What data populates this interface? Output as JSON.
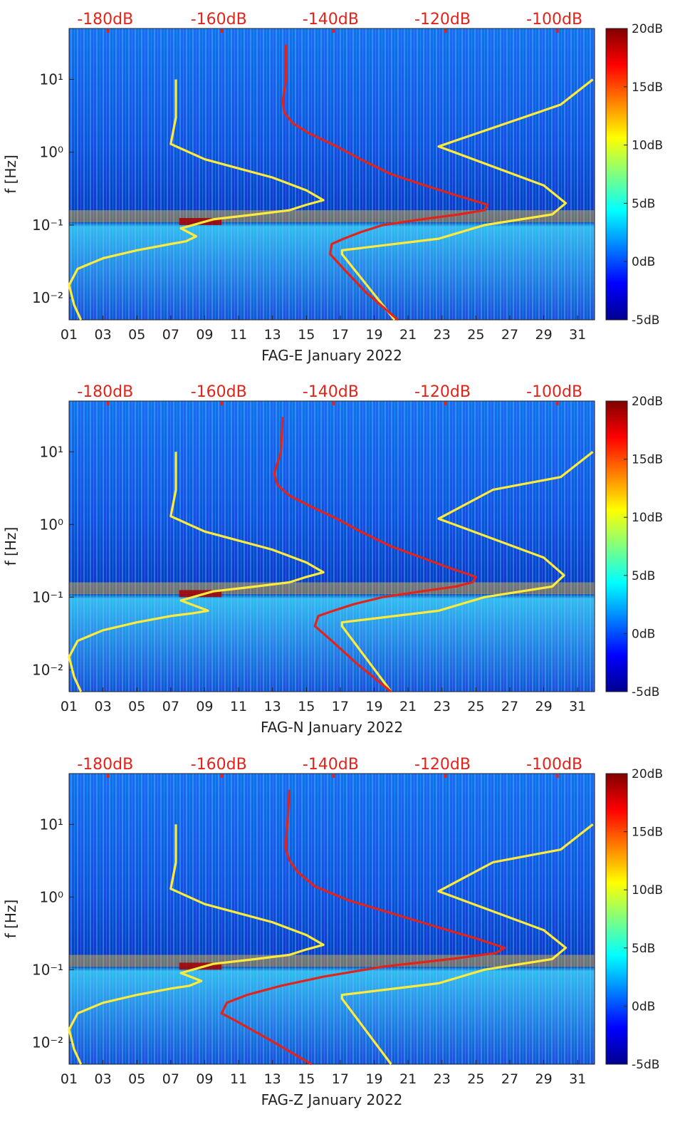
{
  "chart_data": [
    {
      "type": "heatmap",
      "title": "",
      "xlabel": "FAG-E January 2022",
      "ylabel": "f [Hz]",
      "xtick_labels": [
        "01",
        "03",
        "05",
        "07",
        "09",
        "11",
        "13",
        "15",
        "17",
        "19",
        "21",
        "23",
        "25",
        "27",
        "29",
        "31"
      ],
      "xlim_days": [
        1,
        32
      ],
      "ytick_labels": [
        "10⁻²",
        "10⁻¹",
        "10⁰",
        "10¹"
      ],
      "yscale": "log",
      "ylim": [
        0.005,
        50
      ],
      "top_axis_labels": [
        "-180dB",
        "-160dB",
        "-140dB",
        "-120dB",
        "-100dB"
      ],
      "colorbar": {
        "labels": [
          "20dB",
          "15dB",
          "10dB",
          "5dB",
          "0dB",
          "-5dB"
        ],
        "range": [
          -5,
          20
        ]
      },
      "series": [
        {
          "color": "#ffeb3b",
          "x": [
            1.7,
            1.3,
            1.0,
            1.5,
            3.0,
            5.0,
            7.0,
            7.9,
            8.5,
            7.6,
            9.5,
            12.0,
            14.0,
            15.0,
            16.0,
            15.0,
            13.0,
            11.0,
            9.0,
            7.0,
            7.3,
            7.3
          ],
          "y": [
            0.005,
            0.008,
            0.015,
            0.025,
            0.035,
            0.045,
            0.055,
            0.06,
            0.07,
            0.09,
            0.12,
            0.14,
            0.16,
            0.19,
            0.22,
            0.3,
            0.45,
            0.6,
            0.8,
            1.3,
            3,
            10
          ]
        },
        {
          "color": "#ffeb3b",
          "x": [
            20.2,
            17.1,
            17.1,
            22.8,
            25.5,
            29.5,
            30.3,
            29.0,
            22.8,
            30.0,
            31.9
          ],
          "y": [
            0.005,
            0.04,
            0.045,
            0.065,
            0.1,
            0.14,
            0.2,
            0.35,
            1.2,
            4.5,
            10
          ]
        },
        {
          "color": "#e2231a",
          "x": [
            20.4,
            18.5,
            17.2,
            16.4,
            16.5,
            17.2,
            18.2,
            19.5,
            21.8,
            24.0,
            25.5,
            25.7,
            24.0,
            22.0,
            20.0,
            18.2,
            16.8,
            15.2,
            14.2,
            13.7,
            13.6,
            13.8,
            13.8
          ],
          "y": [
            0.005,
            0.012,
            0.025,
            0.04,
            0.055,
            0.065,
            0.08,
            0.1,
            0.12,
            0.14,
            0.16,
            0.19,
            0.25,
            0.35,
            0.5,
            0.8,
            1.2,
            1.8,
            2.5,
            3.5,
            5,
            10,
            30
          ]
        }
      ]
    },
    {
      "type": "heatmap",
      "title": "",
      "xlabel": "FAG-N January 2022",
      "ylabel": "f [Hz]",
      "xtick_labels": [
        "01",
        "03",
        "05",
        "07",
        "09",
        "11",
        "13",
        "15",
        "17",
        "19",
        "21",
        "23",
        "25",
        "27",
        "29",
        "31"
      ],
      "xlim_days": [
        1,
        32
      ],
      "ytick_labels": [
        "10⁻²",
        "10⁻¹",
        "10⁰",
        "10¹"
      ],
      "yscale": "log",
      "ylim": [
        0.005,
        50
      ],
      "top_axis_labels": [
        "-180dB",
        "-160dB",
        "-140dB",
        "-120dB",
        "-100dB"
      ],
      "colorbar": {
        "labels": [
          "20dB",
          "15dB",
          "10dB",
          "5dB",
          "0dB",
          "-5dB"
        ],
        "range": [
          -5,
          20
        ]
      },
      "series": [
        {
          "color": "#ffeb3b",
          "x": [
            1.7,
            1.3,
            1.0,
            1.5,
            3.0,
            5.0,
            7.0,
            8.3,
            9.2,
            7.6,
            9.5,
            12.0,
            14.0,
            15.0,
            16.0,
            15.0,
            13.0,
            11.0,
            9.0,
            7.0,
            7.3,
            7.3
          ],
          "y": [
            0.005,
            0.008,
            0.015,
            0.025,
            0.035,
            0.045,
            0.055,
            0.06,
            0.065,
            0.09,
            0.12,
            0.14,
            0.16,
            0.19,
            0.22,
            0.3,
            0.45,
            0.6,
            0.8,
            1.3,
            3,
            10
          ]
        },
        {
          "color": "#ffeb3b",
          "x": [
            20.0,
            17.1,
            17.1,
            22.8,
            25.5,
            29.5,
            30.2,
            29.0,
            22.8,
            26.0,
            30.0,
            31.9
          ],
          "y": [
            0.005,
            0.04,
            0.045,
            0.065,
            0.1,
            0.14,
            0.2,
            0.35,
            1.2,
            3.0,
            4.5,
            10
          ]
        },
        {
          "color": "#e2231a",
          "x": [
            20.0,
            18.0,
            16.5,
            15.5,
            15.7,
            16.6,
            17.8,
            19.5,
            21.8,
            23.8,
            24.8,
            25.0,
            23.5,
            21.8,
            20.0,
            18.2,
            16.8,
            15.2,
            14.0,
            13.3,
            13.1,
            13.5,
            13.6
          ],
          "y": [
            0.005,
            0.012,
            0.025,
            0.04,
            0.055,
            0.065,
            0.08,
            0.1,
            0.12,
            0.14,
            0.16,
            0.19,
            0.25,
            0.35,
            0.5,
            0.8,
            1.2,
            1.8,
            2.5,
            3.5,
            5,
            10,
            30
          ]
        }
      ]
    },
    {
      "type": "heatmap",
      "title": "",
      "xlabel": "FAG-Z January 2022",
      "ylabel": "f [Hz]",
      "xtick_labels": [
        "01",
        "03",
        "05",
        "07",
        "09",
        "11",
        "13",
        "15",
        "17",
        "19",
        "21",
        "23",
        "25",
        "27",
        "29",
        "31"
      ],
      "xlim_days": [
        1,
        32
      ],
      "ytick_labels": [
        "10⁻²",
        "10⁻¹",
        "10⁰",
        "10¹"
      ],
      "yscale": "log",
      "ylim": [
        0.005,
        50
      ],
      "top_axis_labels": [
        "-180dB",
        "-160dB",
        "-140dB",
        "-120dB",
        "-100dB"
      ],
      "colorbar": {
        "labels": [
          "20dB",
          "15dB",
          "10dB",
          "5dB",
          "0dB",
          "-5dB"
        ],
        "range": [
          -5,
          20
        ]
      },
      "series": [
        {
          "color": "#ffeb3b",
          "x": [
            1.7,
            1.3,
            1.0,
            1.5,
            3.0,
            5.0,
            7.0,
            8.1,
            8.8,
            7.6,
            9.5,
            12.0,
            14.0,
            15.0,
            16.0,
            15.0,
            13.0,
            11.0,
            9.0,
            7.0,
            7.3,
            7.3
          ],
          "y": [
            0.005,
            0.008,
            0.015,
            0.025,
            0.035,
            0.045,
            0.055,
            0.06,
            0.07,
            0.09,
            0.12,
            0.14,
            0.16,
            0.19,
            0.22,
            0.3,
            0.45,
            0.6,
            0.8,
            1.3,
            3,
            10
          ]
        },
        {
          "color": "#ffeb3b",
          "x": [
            20.0,
            17.1,
            17.1,
            22.8,
            25.5,
            29.5,
            30.3,
            29.0,
            22.8,
            26.0,
            30.0,
            31.9
          ],
          "y": [
            0.005,
            0.04,
            0.045,
            0.065,
            0.1,
            0.14,
            0.2,
            0.35,
            1.2,
            3.0,
            4.5,
            10
          ]
        },
        {
          "color": "#e2231a",
          "x": [
            15.3,
            12.5,
            10.8,
            10.0,
            10.3,
            11.5,
            13.5,
            16.0,
            19.5,
            23.5,
            26.2,
            26.7,
            25.0,
            22.5,
            20.0,
            17.5,
            15.5,
            14.5,
            14.0,
            13.8,
            13.8,
            13.9,
            14.0
          ],
          "y": [
            0.005,
            0.012,
            0.02,
            0.025,
            0.035,
            0.045,
            0.06,
            0.08,
            0.11,
            0.14,
            0.17,
            0.2,
            0.27,
            0.4,
            0.6,
            0.9,
            1.4,
            2.2,
            3.2,
            4.5,
            6,
            12,
            30
          ]
        }
      ]
    }
  ]
}
